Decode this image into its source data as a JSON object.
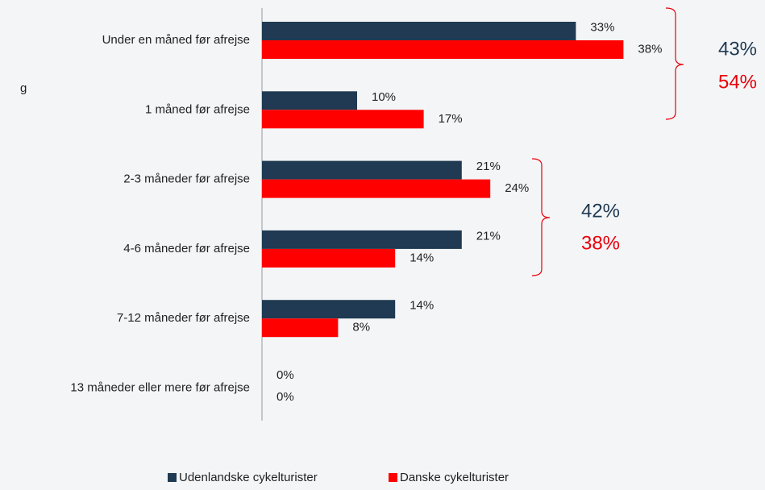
{
  "chart_data": {
    "type": "hbar",
    "side_text": "g",
    "categories": [
      "Under en måned før afrejse",
      "1 måned før afrejse",
      "2-3 måneder før afrejse",
      "4-6 måneder før afrejse",
      "7-12 måneder før afrejse",
      "13 måneder eller mere før afrejse"
    ],
    "series": [
      {
        "name": "Udenlandske cykelturister",
        "color": "#1f3a52",
        "values": [
          33,
          10,
          21,
          21,
          14,
          0
        ],
        "value_labels": [
          "33%",
          "10%",
          "21%",
          "21%",
          "14%",
          "0%"
        ]
      },
      {
        "name": "Danske cykelturister",
        "color": "#ff0000",
        "values": [
          38,
          17,
          24,
          14,
          8,
          0
        ],
        "value_labels": [
          "38%",
          "17%",
          "24%",
          "14%",
          "8%",
          "0%"
        ]
      }
    ],
    "xlim": [
      0,
      50
    ],
    "annotations": [
      {
        "text": "43%",
        "color": "#1f3a52"
      },
      {
        "text": "54%",
        "color": "#e8000b"
      },
      {
        "text": "42%",
        "color": "#1f3a52"
      },
      {
        "text": "38%",
        "color": "#e8000b"
      }
    ]
  }
}
